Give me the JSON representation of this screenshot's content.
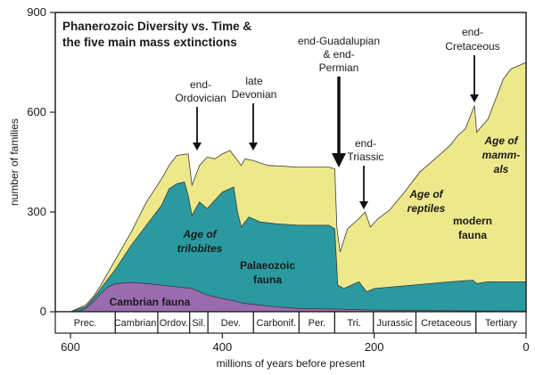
{
  "chart_data": {
    "type": "area",
    "stacked": true,
    "title": [
      "Phanerozoic Diversity vs. Time &",
      "the five main mass extinctions"
    ],
    "xlabel": "millions of years before present",
    "ylabel": "number of families",
    "x_reversed": true,
    "xlim": [
      620,
      0
    ],
    "ylim": [
      0,
      900
    ],
    "xticks": [
      600,
      400,
      200,
      0
    ],
    "yticks": [
      0,
      300,
      600,
      900
    ],
    "colors": {
      "cambrian": "#9b6bb0",
      "palaeozoic": "#2a9aa0",
      "modern": "#ede98a",
      "outline": "#3a3a3a"
    },
    "series": [
      {
        "key": "cambrian",
        "name": "Cambrian fauna",
        "points": [
          [
            600,
            0
          ],
          [
            590,
            0
          ],
          [
            580,
            10
          ],
          [
            570,
            30
          ],
          [
            560,
            55
          ],
          [
            550,
            75
          ],
          [
            540,
            85
          ],
          [
            520,
            88
          ],
          [
            500,
            85
          ],
          [
            480,
            80
          ],
          [
            460,
            75
          ],
          [
            440,
            70
          ],
          [
            430,
            60
          ],
          [
            420,
            50
          ],
          [
            400,
            40
          ],
          [
            370,
            25
          ],
          [
            330,
            15
          ],
          [
            300,
            10
          ],
          [
            250,
            8
          ],
          [
            200,
            5
          ],
          [
            100,
            3
          ],
          [
            0,
            2
          ]
        ]
      },
      {
        "key": "palaeozoic",
        "name": "Palaeozoic fauna",
        "points": [
          [
            600,
            0
          ],
          [
            580,
            15
          ],
          [
            570,
            40
          ],
          [
            560,
            70
          ],
          [
            550,
            100
          ],
          [
            540,
            130
          ],
          [
            520,
            200
          ],
          [
            500,
            260
          ],
          [
            480,
            320
          ],
          [
            470,
            370
          ],
          [
            460,
            385
          ],
          [
            450,
            390
          ],
          [
            445,
            350
          ],
          [
            440,
            290
          ],
          [
            430,
            330
          ],
          [
            420,
            310
          ],
          [
            400,
            360
          ],
          [
            385,
            375
          ],
          [
            380,
            300
          ],
          [
            375,
            255
          ],
          [
            365,
            285
          ],
          [
            350,
            270
          ],
          [
            330,
            265
          ],
          [
            300,
            260
          ],
          [
            260,
            260
          ],
          [
            252,
            250
          ],
          [
            248,
            80
          ],
          [
            240,
            70
          ],
          [
            230,
            80
          ],
          [
            220,
            90
          ],
          [
            210,
            60
          ],
          [
            200,
            70
          ],
          [
            150,
            80
          ],
          [
            100,
            90
          ],
          [
            70,
            95
          ],
          [
            65,
            85
          ],
          [
            50,
            90
          ],
          [
            0,
            90
          ]
        ]
      },
      {
        "key": "modern",
        "name": "modern fauna",
        "points": [
          [
            600,
            0
          ],
          [
            580,
            20
          ],
          [
            570,
            45
          ],
          [
            560,
            80
          ],
          [
            550,
            120
          ],
          [
            540,
            160
          ],
          [
            520,
            240
          ],
          [
            500,
            330
          ],
          [
            480,
            400
          ],
          [
            470,
            440
          ],
          [
            460,
            470
          ],
          [
            445,
            475
          ],
          [
            440,
            380
          ],
          [
            430,
            440
          ],
          [
            420,
            465
          ],
          [
            410,
            460
          ],
          [
            400,
            475
          ],
          [
            390,
            485
          ],
          [
            385,
            470
          ],
          [
            375,
            440
          ],
          [
            370,
            460
          ],
          [
            360,
            455
          ],
          [
            340,
            440
          ],
          [
            300,
            435
          ],
          [
            260,
            435
          ],
          [
            252,
            430
          ],
          [
            249,
            250
          ],
          [
            245,
            180
          ],
          [
            235,
            250
          ],
          [
            220,
            280
          ],
          [
            212,
            300
          ],
          [
            205,
            255
          ],
          [
            195,
            280
          ],
          [
            180,
            305
          ],
          [
            160,
            360
          ],
          [
            140,
            420
          ],
          [
            120,
            460
          ],
          [
            100,
            500
          ],
          [
            90,
            530
          ],
          [
            80,
            550
          ],
          [
            68,
            620
          ],
          [
            65,
            540
          ],
          [
            50,
            580
          ],
          [
            30,
            700
          ],
          [
            20,
            730
          ],
          [
            0,
            750
          ]
        ]
      }
    ],
    "region_labels": [
      {
        "text": "Cambrian fauna",
        "italic": false
      },
      {
        "text": "Age of",
        "italic": true
      },
      {
        "text": "trilobites",
        "italic": true
      },
      {
        "text": "Palaeozoic",
        "italic": false
      },
      {
        "text": "fauna",
        "italic": false
      },
      {
        "text": "Age of",
        "italic": true
      },
      {
        "text": "reptiles",
        "italic": true
      },
      {
        "text": "modern",
        "italic": false
      },
      {
        "text": "fauna",
        "italic": false
      },
      {
        "text": "Age of",
        "italic": true
      },
      {
        "text": "mamm-",
        "italic": true
      },
      {
        "text": "als",
        "italic": true
      }
    ],
    "extinctions": [
      {
        "lines": [
          "end-",
          "Ordovician"
        ],
        "x": 443,
        "bold": false
      },
      {
        "lines": [
          "late",
          "Devonian"
        ],
        "x": 372,
        "bold": false
      },
      {
        "lines": [
          "end-Guadalupian",
          "& end-",
          "Permian"
        ],
        "x": 252,
        "bold": true
      },
      {
        "lines": [
          "end-",
          "Triassic"
        ],
        "x": 201,
        "bold": false
      },
      {
        "lines": [
          "end-",
          "Cretaceous"
        ],
        "x": 66,
        "bold": false
      }
    ],
    "periods": [
      {
        "name": "Prec.",
        "start": 620,
        "end": 541
      },
      {
        "name": "Cambrian.",
        "start": 541,
        "end": 485
      },
      {
        "name": "Ordov.",
        "start": 485,
        "end": 443
      },
      {
        "name": "Sil.",
        "start": 443,
        "end": 419
      },
      {
        "name": "Dev.",
        "start": 419,
        "end": 359
      },
      {
        "name": "Carbonif.",
        "start": 359,
        "end": 299
      },
      {
        "name": "Per.",
        "start": 299,
        "end": 252
      },
      {
        "name": "Tri.",
        "start": 252,
        "end": 201
      },
      {
        "name": "Jurassic",
        "start": 201,
        "end": 145
      },
      {
        "name": "Cretaceous",
        "start": 145,
        "end": 66
      },
      {
        "name": "Tertiary",
        "start": 66,
        "end": 0
      }
    ]
  }
}
